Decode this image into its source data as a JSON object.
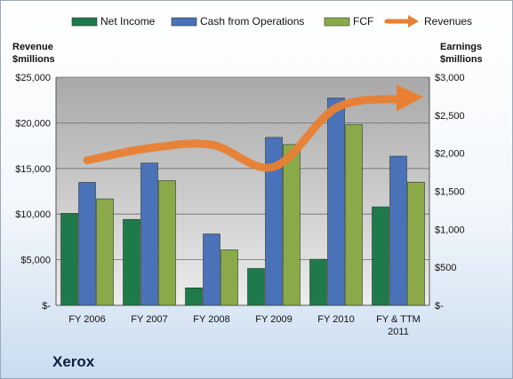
{
  "chart_data": {
    "type": "bar",
    "company": "Xerox",
    "categories": [
      [
        "FY 2006"
      ],
      [
        "FY 2007"
      ],
      [
        "FY 2008"
      ],
      [
        "FY 2009"
      ],
      [
        "FY 2010"
      ],
      [
        "FY & TTM",
        "2011"
      ]
    ],
    "left_axis": {
      "title": [
        "Revenue",
        "$millions"
      ],
      "min": 0,
      "max": 25000,
      "step": 5000,
      "tick_labels": [
        "$-",
        "$5,000",
        "$10,000",
        "$15,000",
        "$20,000",
        "$25,000"
      ]
    },
    "right_axis": {
      "title": [
        "Earnings",
        "$millions"
      ],
      "min": 0,
      "max": 3000,
      "step": 500,
      "tick_labels": [
        "$-",
        "$500",
        "$1,000",
        "$1,500",
        "$2,000",
        "$2,500",
        "$3,000"
      ]
    },
    "series": [
      {
        "name": "Net Income",
        "kind": "bar",
        "axis": "right",
        "color": "#1e7a4a",
        "values": [
          1210,
          1130,
          230,
          485,
          606,
          1295
        ]
      },
      {
        "name": "Cash from Operations",
        "kind": "bar",
        "axis": "right",
        "color": "#4a72b8",
        "values": [
          1617,
          1871,
          939,
          2208,
          2726,
          1961
        ]
      },
      {
        "name": "FCF",
        "kind": "bar",
        "axis": "right",
        "color": "#8aaa4a",
        "values": [
          1400,
          1640,
          730,
          2115,
          2375,
          1620
        ]
      },
      {
        "name": "Revenues",
        "kind": "line-arrow",
        "axis": "left",
        "color": "#e97f32",
        "values": [
          15895,
          17228,
          17608,
          15179,
          21633,
          22626
        ]
      }
    ],
    "grid": true,
    "legend_position": "top"
  }
}
